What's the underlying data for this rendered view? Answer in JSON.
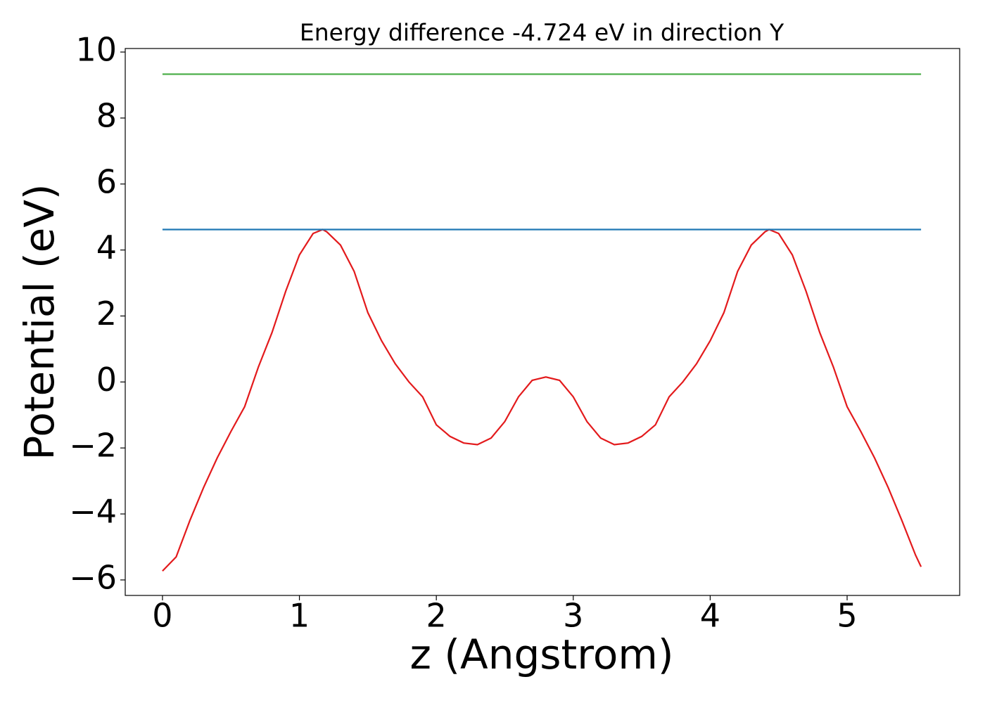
{
  "chart_data": {
    "type": "line",
    "title": "Energy difference -4.724 eV in direction Y",
    "xlabel": "z (Angstrom)",
    "ylabel": "Potential (eV)",
    "xlim": [
      -0.272,
      5.822
    ],
    "ylim": [
      -6.47,
      10.107
    ],
    "xticks": [
      0,
      1,
      2,
      3,
      4,
      5
    ],
    "yticks": [
      {
        "value": -6,
        "label": "−6"
      },
      {
        "value": -4,
        "label": "−4"
      },
      {
        "value": -2,
        "label": "−2"
      },
      0,
      2,
      4,
      6,
      8,
      10
    ],
    "grid": false,
    "series": [
      {
        "color": "#e31a1c",
        "x": [
          0,
          0.1,
          0.2,
          0.3,
          0.4,
          0.5,
          0.6,
          0.7,
          0.8,
          0.9,
          1.0,
          1.1,
          1.17,
          1.2,
          1.3,
          1.4,
          1.5,
          1.6,
          1.7,
          1.8,
          1.9,
          2.0,
          2.1,
          2.2,
          2.3,
          2.4,
          2.5,
          2.6,
          2.7,
          2.8,
          2.9,
          3.0,
          3.1,
          3.2,
          3.3,
          3.4,
          3.5,
          3.6,
          3.7,
          3.8,
          3.9,
          4.0,
          4.1,
          4.2,
          4.3,
          4.4,
          4.43,
          4.5,
          4.6,
          4.7,
          4.8,
          4.9,
          5.0,
          5.1,
          5.2,
          5.3,
          5.4,
          5.5,
          5.54
        ],
        "values": [
          -5.73,
          -5.3,
          -4.2,
          -3.2,
          -2.3,
          -1.5,
          -0.75,
          0.45,
          1.5,
          2.75,
          3.85,
          4.5,
          4.62,
          4.55,
          4.15,
          3.35,
          2.1,
          1.25,
          0.55,
          0.0,
          -0.45,
          -1.3,
          -1.65,
          -1.85,
          -1.9,
          -1.7,
          -1.2,
          -0.45,
          0.05,
          0.15,
          0.05,
          -0.45,
          -1.2,
          -1.7,
          -1.9,
          -1.85,
          -1.65,
          -1.3,
          -0.45,
          0.0,
          0.55,
          1.25,
          2.1,
          3.35,
          4.15,
          4.55,
          4.62,
          4.5,
          3.85,
          2.75,
          1.5,
          0.45,
          -0.75,
          -1.5,
          -2.3,
          -3.2,
          -4.2,
          -5.25,
          -5.6
        ]
      },
      {
        "color": "#1f77b4",
        "x": [
          0,
          5.54
        ],
        "values": [
          4.62,
          4.62
        ]
      },
      {
        "color": "#4daf4a",
        "x": [
          0,
          5.54
        ],
        "values": [
          9.33,
          9.33
        ]
      }
    ]
  }
}
